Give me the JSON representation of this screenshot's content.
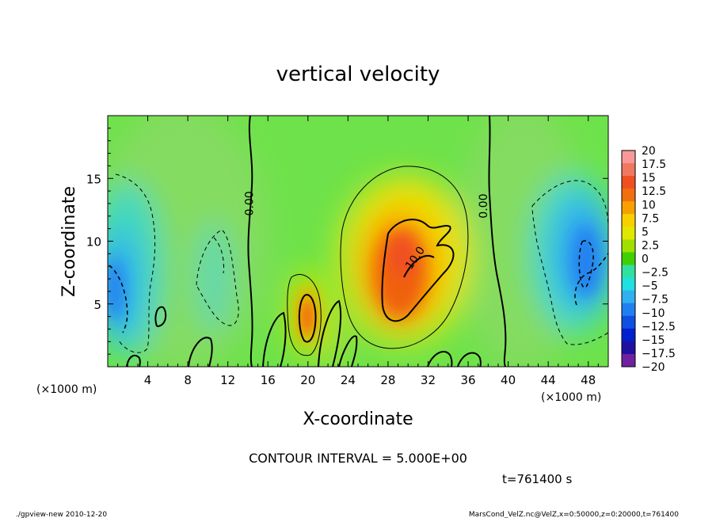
{
  "chart_data": {
    "type": "heatmap",
    "title": "vertical velocity",
    "xlabel": "X-coordinate",
    "ylabel": "Z-coordinate",
    "x_unit_left": "(×1000 m)",
    "x_unit_right": "(×1000 m)",
    "xlim": [
      0,
      50
    ],
    "ylim": [
      0,
      20
    ],
    "x_ticks": [
      4,
      8,
      12,
      16,
      20,
      24,
      28,
      32,
      36,
      40,
      44,
      48
    ],
    "y_ticks": [
      5,
      10,
      15
    ],
    "contour_interval_text": "CONTOUR INTERVAL = 5.000E+00",
    "time_text": "t=761400 s",
    "contour_labels": [
      {
        "text": "0.00",
        "x": 14.5,
        "z": 13.0
      },
      {
        "text": "10.0",
        "x": 31.0,
        "z": 8.5
      },
      {
        "text": "0.00",
        "x": 37.9,
        "z": 12.8
      }
    ],
    "colorbar": {
      "labels": [
        "20",
        "17.5",
        "15",
        "12.5",
        "10",
        "7.5",
        "5",
        "2.5",
        "0",
        "−2.5",
        "−5",
        "−7.5",
        "−10",
        "−12.5",
        "−15",
        "−17.5",
        "−20"
      ],
      "values": [
        20,
        17.5,
        15,
        12.5,
        10,
        7.5,
        5,
        2.5,
        0,
        -2.5,
        -5,
        -7.5,
        -10,
        -12.5,
        -15,
        -17.5,
        -20
      ],
      "colors": [
        "#f89898",
        "#f07860",
        "#f05020",
        "#f07010",
        "#f8a000",
        "#f8d000",
        "#e0e800",
        "#a0e000",
        "#40d000",
        "#30e0a0",
        "#20e0e0",
        "#30b0f0",
        "#2080f0",
        "#1050e0",
        "#0020d0",
        "#2010a0",
        "#7020a0"
      ]
    },
    "features": [
      {
        "kind": "updraft",
        "x": 29.5,
        "z": 8.5,
        "peak": 12,
        "note": "main updraft core"
      },
      {
        "kind": "updraft",
        "x": 19.8,
        "z": 3.8,
        "peak": 10
      },
      {
        "kind": "downdraft",
        "x": 47,
        "z": 8,
        "peak": -9
      },
      {
        "kind": "downdraft",
        "x": 1,
        "z": 6.5,
        "peak": -8
      }
    ]
  },
  "footer": {
    "left": "./gpview-new  2010-12-20",
    "right": "MarsCond_VelZ.nc@VelZ,x=0:50000,z=0:20000,t=761400"
  }
}
